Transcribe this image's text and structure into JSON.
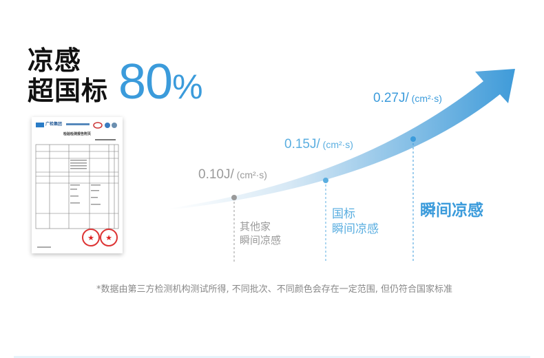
{
  "headline": {
    "line1": "凉感",
    "line2": "超国标",
    "figure": "80",
    "unit": "%"
  },
  "report_image": {
    "title": "检验检测报告附页",
    "brand": "广检集团"
  },
  "chart_data": {
    "type": "line",
    "categories": [
      "其他家瞬间凉感",
      "国标瞬间凉感",
      "瞬间凉感"
    ],
    "values": [
      0.1,
      0.15,
      0.27
    ],
    "unit": "J/ (cm²·s)",
    "data_labels": [
      "0.10J/ (cm²·s)",
      "0.15J/ (cm²·s)",
      "0.27J/ (cm²·s)"
    ],
    "category_labels": [
      [
        "其他家",
        "瞬间凉感"
      ],
      [
        "国标",
        "瞬间凉感"
      ],
      [
        "瞬间凉感"
      ]
    ],
    "colors": {
      "other": "#9a9a9a",
      "standard": "#5aaee0",
      "ours": "#3b9bdb"
    }
  },
  "footnote": "*数据由第三方检测机构测试所得, 不同批次、不同颜色会存在一定范围, 但仍符合国家标准"
}
